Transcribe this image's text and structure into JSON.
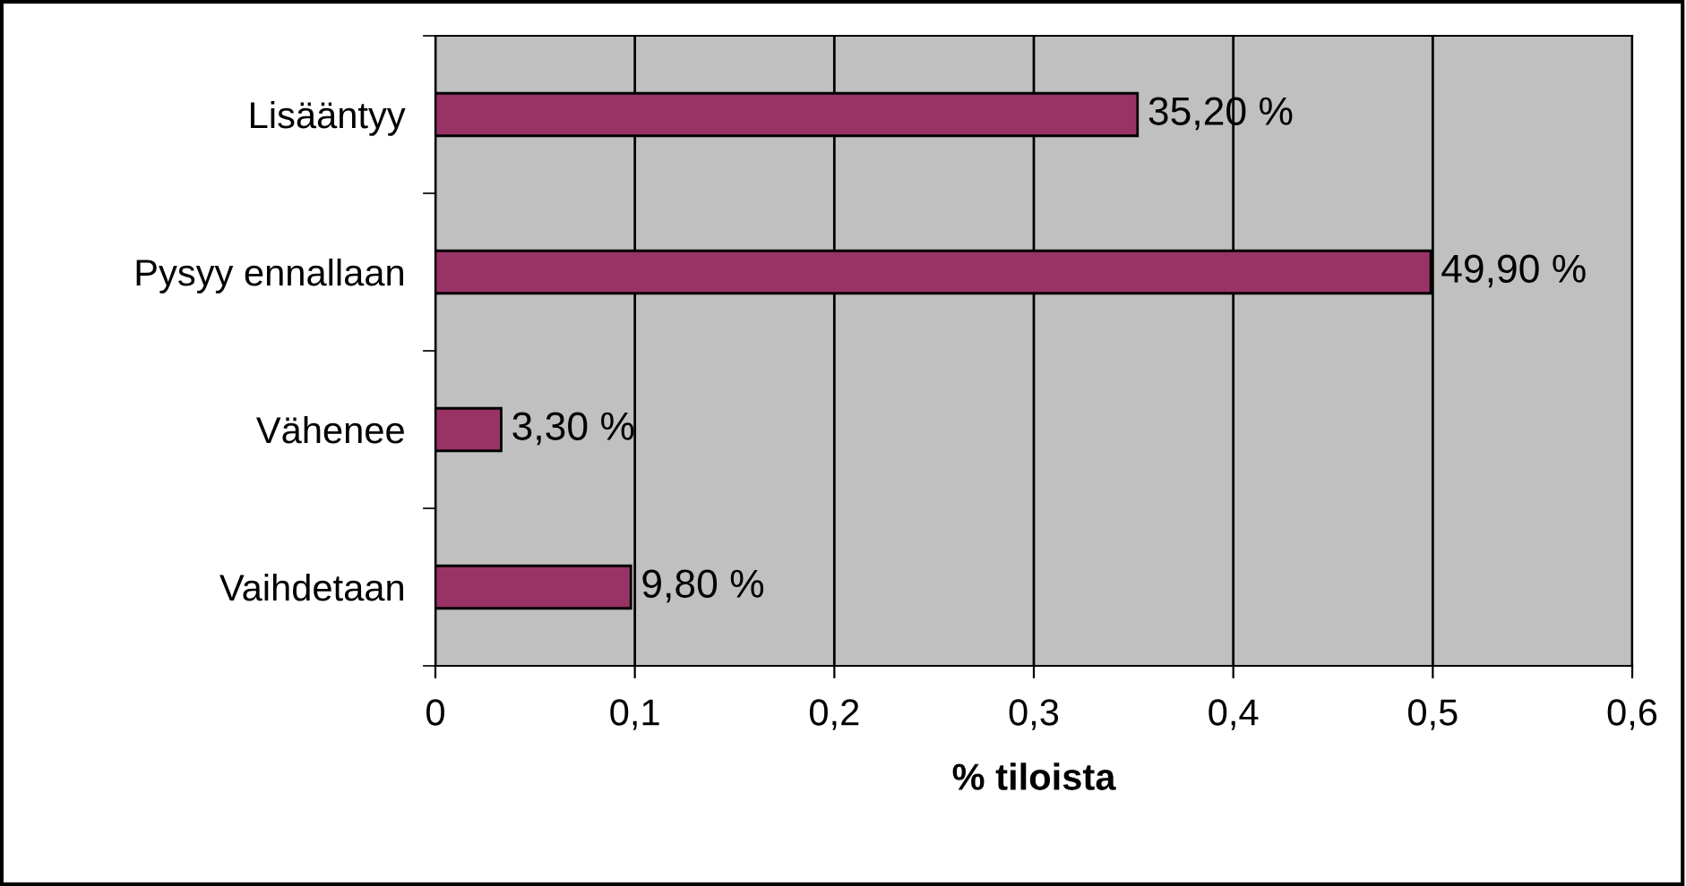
{
  "chart_data": {
    "type": "bar",
    "orientation": "horizontal",
    "xlabel": "% tiloista",
    "categories": [
      "Lisääntyy",
      "Pysyy ennallaan",
      "Vähenee",
      "Vaihdetaan"
    ],
    "values": [
      0.352,
      0.499,
      0.033,
      0.098
    ],
    "value_labels": [
      "35,20 %",
      "49,90 %",
      "3,30 %",
      "9,80 %"
    ],
    "color": "#993366",
    "xlim": [
      0,
      0.6
    ],
    "xticks": [
      0,
      {
        "value": 0.1,
        "label": "0,1"
      },
      {
        "value": 0.2,
        "label": "0,2"
      },
      {
        "value": 0.3,
        "label": "0,3"
      },
      {
        "value": 0.4,
        "label": "0,4"
      },
      {
        "value": 0.5,
        "label": "0,5"
      },
      {
        "value": 0.6,
        "label": "0,6"
      }
    ],
    "grid": "x"
  }
}
